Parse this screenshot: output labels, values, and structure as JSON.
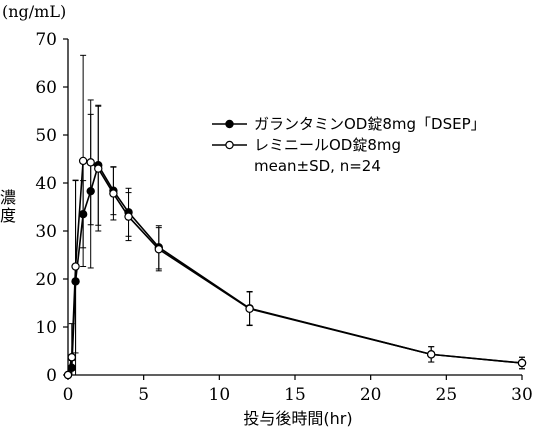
{
  "chart_data": {
    "type": "line",
    "y_unit_label": "(ng/mL)",
    "ylabel": "濃度",
    "xlabel": "投与後時間(hr)",
    "xlim": [
      0,
      30
    ],
    "ylim": [
      0,
      70
    ],
    "x_ticks": [
      0,
      5,
      10,
      15,
      20,
      25,
      30
    ],
    "y_ticks": [
      0,
      10,
      20,
      30,
      40,
      50,
      60,
      70
    ],
    "grid": false,
    "legend_position": "top-right",
    "legend_note": "mean±SD, n=24",
    "series": [
      {
        "name": "ガランタミンOD錠8mg「DSEP」",
        "marker": "filled-circle",
        "points": [
          {
            "x": 0,
            "y": 0,
            "sd": 0
          },
          {
            "x": 0.25,
            "y": 1.5,
            "sd": 1.5
          },
          {
            "x": 0.5,
            "y": 19.5,
            "sd": 21
          },
          {
            "x": 1,
            "y": 33.5,
            "sd": 7
          },
          {
            "x": 1.5,
            "y": 38.3,
            "sd": 16
          },
          {
            "x": 2,
            "y": 43.7,
            "sd": 12.5
          },
          {
            "x": 3,
            "y": 38.4,
            "sd": 5
          },
          {
            "x": 4,
            "y": 33.9,
            "sd": 5
          },
          {
            "x": 6,
            "y": 26.6,
            "sd": 4.5
          },
          {
            "x": 12,
            "y": 13.9,
            "sd": 3.5
          },
          {
            "x": 24,
            "y": 4.3,
            "sd": 1.6
          },
          {
            "x": 30,
            "y": 2.5,
            "sd": 1.2
          }
        ]
      },
      {
        "name": "レミニールOD錠8mg",
        "marker": "open-circle",
        "points": [
          {
            "x": 0,
            "y": 0,
            "sd": 0
          },
          {
            "x": 0.25,
            "y": 3.7,
            "sd": 7
          },
          {
            "x": 0.5,
            "y": 22.6,
            "sd": 18
          },
          {
            "x": 1,
            "y": 44.6,
            "sd": 22
          },
          {
            "x": 1.5,
            "y": 44.3,
            "sd": 13
          },
          {
            "x": 2,
            "y": 43.0,
            "sd": 13
          },
          {
            "x": 3,
            "y": 37.8,
            "sd": 5.5
          },
          {
            "x": 4,
            "y": 33.0,
            "sd": 5
          },
          {
            "x": 6,
            "y": 26.2,
            "sd": 4.5
          },
          {
            "x": 12,
            "y": 13.8,
            "sd": 3.5
          },
          {
            "x": 24,
            "y": 4.3,
            "sd": 1.6
          },
          {
            "x": 30,
            "y": 2.5,
            "sd": 1.2
          }
        ]
      }
    ]
  }
}
